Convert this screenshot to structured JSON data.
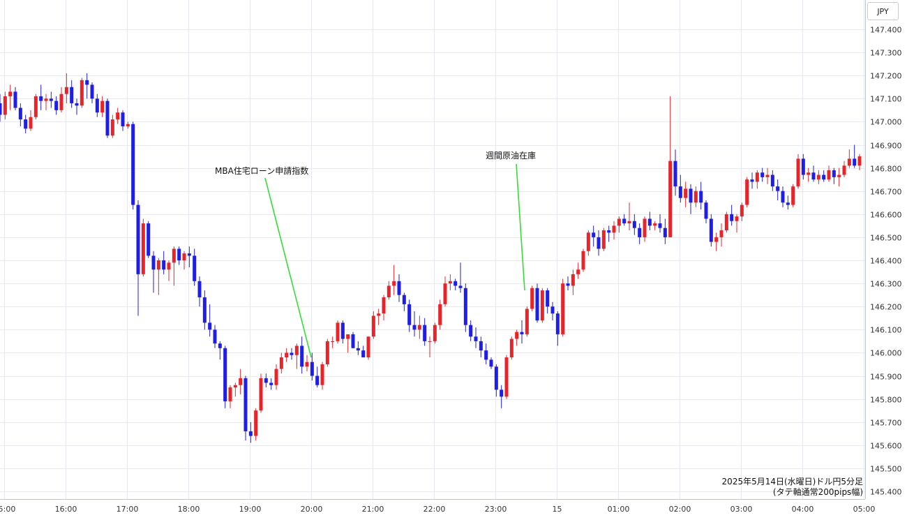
{
  "currency_label": "JPY",
  "chart_data": {
    "type": "candlestick",
    "title": "2025年5月14日(水曜日)ドル円5分足",
    "subtitle": "(タテ軸通常200pips幅)",
    "y_unit": "JPY",
    "ylim": [
      145.35,
      147.5
    ],
    "y_ticks": [
      "147.400",
      "147.300",
      "147.200",
      "147.100",
      "147.000",
      "146.900",
      "146.800",
      "146.700",
      "146.600",
      "146.500",
      "146.400",
      "146.300",
      "146.200",
      "146.100",
      "146.000",
      "145.900",
      "145.800",
      "145.700",
      "145.600",
      "145.500",
      "145.400"
    ],
    "x_ticks": [
      "15:00",
      "16:00",
      "17:00",
      "18:00",
      "19:00",
      "20:00",
      "21:00",
      "22:00",
      "23:00",
      "15",
      "01:00",
      "02:00",
      "03:00",
      "04:00",
      "05:00"
    ],
    "up_color": "#e8242b",
    "down_color": "#1e1ee6",
    "grid": true,
    "candles": [
      {
        "o": 147.08,
        "h": 147.12,
        "l": 147.0,
        "c": 147.03
      },
      {
        "o": 147.03,
        "h": 147.13,
        "l": 147.01,
        "c": 147.11
      },
      {
        "o": 147.11,
        "h": 147.16,
        "l": 147.05,
        "c": 147.13
      },
      {
        "o": 147.13,
        "h": 147.15,
        "l": 147.05,
        "c": 147.06
      },
      {
        "o": 147.06,
        "h": 147.08,
        "l": 146.98,
        "c": 147.01
      },
      {
        "o": 147.01,
        "h": 147.03,
        "l": 146.95,
        "c": 146.97
      },
      {
        "o": 146.97,
        "h": 147.05,
        "l": 146.96,
        "c": 147.02
      },
      {
        "o": 147.02,
        "h": 147.12,
        "l": 147.01,
        "c": 147.11
      },
      {
        "o": 147.11,
        "h": 147.16,
        "l": 147.05,
        "c": 147.09
      },
      {
        "o": 147.09,
        "h": 147.12,
        "l": 147.05,
        "c": 147.1
      },
      {
        "o": 147.1,
        "h": 147.13,
        "l": 147.06,
        "c": 147.09
      },
      {
        "o": 147.09,
        "h": 147.11,
        "l": 147.03,
        "c": 147.05
      },
      {
        "o": 147.05,
        "h": 147.15,
        "l": 147.04,
        "c": 147.12
      },
      {
        "o": 147.12,
        "h": 147.21,
        "l": 147.08,
        "c": 147.15
      },
      {
        "o": 147.15,
        "h": 147.18,
        "l": 147.06,
        "c": 147.08
      },
      {
        "o": 147.08,
        "h": 147.1,
        "l": 147.03,
        "c": 147.07
      },
      {
        "o": 147.07,
        "h": 147.19,
        "l": 147.06,
        "c": 147.18
      },
      {
        "o": 147.18,
        "h": 147.21,
        "l": 147.1,
        "c": 147.16
      },
      {
        "o": 147.16,
        "h": 147.17,
        "l": 147.08,
        "c": 147.1
      },
      {
        "o": 147.1,
        "h": 147.12,
        "l": 147.02,
        "c": 147.04
      },
      {
        "o": 147.04,
        "h": 147.11,
        "l": 147.02,
        "c": 147.09
      },
      {
        "o": 147.09,
        "h": 147.1,
        "l": 146.93,
        "c": 146.94
      },
      {
        "o": 146.94,
        "h": 147.03,
        "l": 146.93,
        "c": 147.01
      },
      {
        "o": 147.01,
        "h": 147.06,
        "l": 146.99,
        "c": 147.04
      },
      {
        "o": 147.04,
        "h": 147.05,
        "l": 146.96,
        "c": 146.98
      },
      {
        "o": 146.98,
        "h": 147.0,
        "l": 146.97,
        "c": 146.99
      },
      {
        "o": 146.99,
        "h": 147.0,
        "l": 146.62,
        "c": 146.64
      },
      {
        "o": 146.64,
        "h": 146.66,
        "l": 146.16,
        "c": 146.34
      },
      {
        "o": 146.34,
        "h": 146.58,
        "l": 146.33,
        "c": 146.56
      },
      {
        "o": 146.56,
        "h": 146.57,
        "l": 146.41,
        "c": 146.42
      },
      {
        "o": 146.42,
        "h": 146.44,
        "l": 146.26,
        "c": 146.36
      },
      {
        "o": 146.36,
        "h": 146.41,
        "l": 146.25,
        "c": 146.4
      },
      {
        "o": 146.4,
        "h": 146.44,
        "l": 146.34,
        "c": 146.36
      },
      {
        "o": 146.36,
        "h": 146.4,
        "l": 146.31,
        "c": 146.39
      },
      {
        "o": 146.39,
        "h": 146.46,
        "l": 146.29,
        "c": 146.45
      },
      {
        "o": 146.45,
        "h": 146.46,
        "l": 146.38,
        "c": 146.4
      },
      {
        "o": 146.4,
        "h": 146.44,
        "l": 146.36,
        "c": 146.43
      },
      {
        "o": 146.43,
        "h": 146.46,
        "l": 146.37,
        "c": 146.42
      },
      {
        "o": 146.42,
        "h": 146.45,
        "l": 146.29,
        "c": 146.31
      },
      {
        "o": 146.31,
        "h": 146.33,
        "l": 146.2,
        "c": 146.24
      },
      {
        "o": 146.24,
        "h": 146.27,
        "l": 146.1,
        "c": 146.13
      },
      {
        "o": 146.13,
        "h": 146.21,
        "l": 146.07,
        "c": 146.1
      },
      {
        "o": 146.1,
        "h": 146.12,
        "l": 146.02,
        "c": 146.04
      },
      {
        "o": 146.04,
        "h": 146.05,
        "l": 145.97,
        "c": 146.02
      },
      {
        "o": 146.02,
        "h": 146.03,
        "l": 145.76,
        "c": 145.79
      },
      {
        "o": 145.79,
        "h": 145.86,
        "l": 145.76,
        "c": 145.85
      },
      {
        "o": 145.85,
        "h": 145.87,
        "l": 145.81,
        "c": 145.86
      },
      {
        "o": 145.86,
        "h": 145.93,
        "l": 145.82,
        "c": 145.89
      },
      {
        "o": 145.89,
        "h": 145.9,
        "l": 145.62,
        "c": 145.66
      },
      {
        "o": 145.66,
        "h": 145.7,
        "l": 145.61,
        "c": 145.64
      },
      {
        "o": 145.64,
        "h": 145.76,
        "l": 145.62,
        "c": 145.75
      },
      {
        "o": 145.75,
        "h": 145.91,
        "l": 145.74,
        "c": 145.89
      },
      {
        "o": 145.89,
        "h": 145.91,
        "l": 145.85,
        "c": 145.87
      },
      {
        "o": 145.87,
        "h": 145.89,
        "l": 145.84,
        "c": 145.86
      },
      {
        "o": 145.86,
        "h": 145.95,
        "l": 145.84,
        "c": 145.93
      },
      {
        "o": 145.93,
        "h": 146.0,
        "l": 145.91,
        "c": 145.98
      },
      {
        "o": 145.98,
        "h": 146.02,
        "l": 145.96,
        "c": 146.0
      },
      {
        "o": 146.0,
        "h": 146.02,
        "l": 145.97,
        "c": 145.99
      },
      {
        "o": 145.99,
        "h": 146.04,
        "l": 145.93,
        "c": 146.03
      },
      {
        "o": 146.03,
        "h": 146.07,
        "l": 145.91,
        "c": 145.94
      },
      {
        "o": 145.94,
        "h": 145.99,
        "l": 145.92,
        "c": 145.96
      },
      {
        "o": 145.96,
        "h": 146.0,
        "l": 145.88,
        "c": 145.9
      },
      {
        "o": 145.9,
        "h": 145.94,
        "l": 145.85,
        "c": 145.86
      },
      {
        "o": 145.86,
        "h": 145.96,
        "l": 145.84,
        "c": 145.95
      },
      {
        "o": 145.95,
        "h": 146.06,
        "l": 145.94,
        "c": 146.05
      },
      {
        "o": 146.05,
        "h": 146.07,
        "l": 146.02,
        "c": 146.05
      },
      {
        "o": 146.05,
        "h": 146.14,
        "l": 146.04,
        "c": 146.13
      },
      {
        "o": 146.13,
        "h": 146.14,
        "l": 146.04,
        "c": 146.06
      },
      {
        "o": 146.06,
        "h": 146.08,
        "l": 146.0,
        "c": 146.08
      },
      {
        "o": 146.08,
        "h": 146.09,
        "l": 146.02,
        "c": 146.02
      },
      {
        "o": 146.02,
        "h": 146.05,
        "l": 145.99,
        "c": 146.01
      },
      {
        "o": 146.01,
        "h": 146.03,
        "l": 145.98,
        "c": 145.98
      },
      {
        "o": 145.98,
        "h": 146.07,
        "l": 145.97,
        "c": 146.07
      },
      {
        "o": 146.07,
        "h": 146.18,
        "l": 146.06,
        "c": 146.16
      },
      {
        "o": 146.16,
        "h": 146.19,
        "l": 146.12,
        "c": 146.17
      },
      {
        "o": 146.17,
        "h": 146.25,
        "l": 146.14,
        "c": 146.24
      },
      {
        "o": 146.24,
        "h": 146.31,
        "l": 146.23,
        "c": 146.29
      },
      {
        "o": 146.29,
        "h": 146.38,
        "l": 146.25,
        "c": 146.31
      },
      {
        "o": 146.31,
        "h": 146.34,
        "l": 146.22,
        "c": 146.25
      },
      {
        "o": 146.25,
        "h": 146.26,
        "l": 146.18,
        "c": 146.21
      },
      {
        "o": 146.21,
        "h": 146.23,
        "l": 146.09,
        "c": 146.12
      },
      {
        "o": 146.12,
        "h": 146.18,
        "l": 146.07,
        "c": 146.1
      },
      {
        "o": 146.1,
        "h": 146.16,
        "l": 146.06,
        "c": 146.12
      },
      {
        "o": 146.12,
        "h": 146.15,
        "l": 146.03,
        "c": 146.05
      },
      {
        "o": 146.05,
        "h": 146.07,
        "l": 145.98,
        "c": 146.05
      },
      {
        "o": 146.05,
        "h": 146.13,
        "l": 146.04,
        "c": 146.12
      },
      {
        "o": 146.12,
        "h": 146.23,
        "l": 146.1,
        "c": 146.21
      },
      {
        "o": 146.21,
        "h": 146.33,
        "l": 146.2,
        "c": 146.3
      },
      {
        "o": 146.3,
        "h": 146.34,
        "l": 146.27,
        "c": 146.31
      },
      {
        "o": 146.31,
        "h": 146.32,
        "l": 146.27,
        "c": 146.29
      },
      {
        "o": 146.29,
        "h": 146.39,
        "l": 146.26,
        "c": 146.28
      },
      {
        "o": 146.28,
        "h": 146.3,
        "l": 146.09,
        "c": 146.12
      },
      {
        "o": 146.12,
        "h": 146.14,
        "l": 146.05,
        "c": 146.07
      },
      {
        "o": 146.07,
        "h": 146.11,
        "l": 146.02,
        "c": 146.05
      },
      {
        "o": 146.05,
        "h": 146.07,
        "l": 145.98,
        "c": 146.01
      },
      {
        "o": 146.01,
        "h": 146.04,
        "l": 145.95,
        "c": 145.97
      },
      {
        "o": 145.97,
        "h": 145.98,
        "l": 145.93,
        "c": 145.94
      },
      {
        "o": 145.94,
        "h": 145.95,
        "l": 145.81,
        "c": 145.84
      },
      {
        "o": 145.84,
        "h": 145.86,
        "l": 145.76,
        "c": 145.81
      },
      {
        "o": 145.81,
        "h": 145.99,
        "l": 145.8,
        "c": 145.98
      },
      {
        "o": 145.98,
        "h": 146.07,
        "l": 145.97,
        "c": 146.06
      },
      {
        "o": 146.06,
        "h": 146.1,
        "l": 146.03,
        "c": 146.09
      },
      {
        "o": 146.09,
        "h": 146.14,
        "l": 146.04,
        "c": 146.08
      },
      {
        "o": 146.08,
        "h": 146.2,
        "l": 146.07,
        "c": 146.19
      },
      {
        "o": 146.19,
        "h": 146.29,
        "l": 146.18,
        "c": 146.28
      },
      {
        "o": 146.28,
        "h": 146.3,
        "l": 146.13,
        "c": 146.14
      },
      {
        "o": 146.14,
        "h": 146.28,
        "l": 146.13,
        "c": 146.27
      },
      {
        "o": 146.27,
        "h": 146.28,
        "l": 146.17,
        "c": 146.2
      },
      {
        "o": 146.2,
        "h": 146.22,
        "l": 146.14,
        "c": 146.17
      },
      {
        "o": 146.17,
        "h": 146.18,
        "l": 146.03,
        "c": 146.08
      },
      {
        "o": 146.08,
        "h": 146.32,
        "l": 146.07,
        "c": 146.3
      },
      {
        "o": 146.3,
        "h": 146.33,
        "l": 146.27,
        "c": 146.29
      },
      {
        "o": 146.29,
        "h": 146.36,
        "l": 146.25,
        "c": 146.34
      },
      {
        "o": 146.34,
        "h": 146.39,
        "l": 146.32,
        "c": 146.36
      },
      {
        "o": 146.36,
        "h": 146.45,
        "l": 146.35,
        "c": 146.44
      },
      {
        "o": 146.44,
        "h": 146.53,
        "l": 146.42,
        "c": 146.52
      },
      {
        "o": 146.52,
        "h": 146.55,
        "l": 146.46,
        "c": 146.5
      },
      {
        "o": 146.5,
        "h": 146.53,
        "l": 146.42,
        "c": 146.45
      },
      {
        "o": 146.45,
        "h": 146.54,
        "l": 146.44,
        "c": 146.53
      },
      {
        "o": 146.53,
        "h": 146.55,
        "l": 146.48,
        "c": 146.52
      },
      {
        "o": 146.52,
        "h": 146.57,
        "l": 146.49,
        "c": 146.55
      },
      {
        "o": 146.55,
        "h": 146.59,
        "l": 146.52,
        "c": 146.58
      },
      {
        "o": 146.58,
        "h": 146.6,
        "l": 146.55,
        "c": 146.56
      },
      {
        "o": 146.56,
        "h": 146.65,
        "l": 146.53,
        "c": 146.57
      },
      {
        "o": 146.57,
        "h": 146.6,
        "l": 146.51,
        "c": 146.54
      },
      {
        "o": 146.54,
        "h": 146.56,
        "l": 146.47,
        "c": 146.5
      },
      {
        "o": 146.5,
        "h": 146.59,
        "l": 146.48,
        "c": 146.58
      },
      {
        "o": 146.58,
        "h": 146.61,
        "l": 146.53,
        "c": 146.55
      },
      {
        "o": 146.55,
        "h": 146.57,
        "l": 146.53,
        "c": 146.56
      },
      {
        "o": 146.56,
        "h": 146.6,
        "l": 146.52,
        "c": 146.54
      },
      {
        "o": 146.54,
        "h": 146.58,
        "l": 146.47,
        "c": 146.5
      },
      {
        "o": 146.5,
        "h": 147.11,
        "l": 146.5,
        "c": 146.83
      },
      {
        "o": 146.83,
        "h": 146.88,
        "l": 146.68,
        "c": 146.72
      },
      {
        "o": 146.72,
        "h": 146.77,
        "l": 146.65,
        "c": 146.67
      },
      {
        "o": 146.67,
        "h": 146.74,
        "l": 146.63,
        "c": 146.71
      },
      {
        "o": 146.71,
        "h": 146.73,
        "l": 146.6,
        "c": 146.65
      },
      {
        "o": 146.65,
        "h": 146.72,
        "l": 146.63,
        "c": 146.7
      },
      {
        "o": 146.7,
        "h": 146.74,
        "l": 146.62,
        "c": 146.65
      },
      {
        "o": 146.65,
        "h": 146.66,
        "l": 146.56,
        "c": 146.58
      },
      {
        "o": 146.58,
        "h": 146.6,
        "l": 146.46,
        "c": 146.48
      },
      {
        "o": 146.48,
        "h": 146.52,
        "l": 146.44,
        "c": 146.5
      },
      {
        "o": 146.5,
        "h": 146.56,
        "l": 146.46,
        "c": 146.53
      },
      {
        "o": 146.53,
        "h": 146.61,
        "l": 146.52,
        "c": 146.6
      },
      {
        "o": 146.6,
        "h": 146.64,
        "l": 146.55,
        "c": 146.57
      },
      {
        "o": 146.57,
        "h": 146.6,
        "l": 146.52,
        "c": 146.59
      },
      {
        "o": 146.59,
        "h": 146.65,
        "l": 146.57,
        "c": 146.64
      },
      {
        "o": 146.64,
        "h": 146.76,
        "l": 146.63,
        "c": 146.75
      },
      {
        "o": 146.75,
        "h": 146.78,
        "l": 146.71,
        "c": 146.74
      },
      {
        "o": 146.74,
        "h": 146.79,
        "l": 146.71,
        "c": 146.78
      },
      {
        "o": 146.78,
        "h": 146.8,
        "l": 146.74,
        "c": 146.76
      },
      {
        "o": 146.76,
        "h": 146.8,
        "l": 146.73,
        "c": 146.77
      },
      {
        "o": 146.77,
        "h": 146.79,
        "l": 146.7,
        "c": 146.72
      },
      {
        "o": 146.72,
        "h": 146.75,
        "l": 146.66,
        "c": 146.7
      },
      {
        "o": 146.7,
        "h": 146.72,
        "l": 146.63,
        "c": 146.65
      },
      {
        "o": 146.65,
        "h": 146.68,
        "l": 146.62,
        "c": 146.64
      },
      {
        "o": 146.64,
        "h": 146.73,
        "l": 146.63,
        "c": 146.72
      },
      {
        "o": 146.72,
        "h": 146.86,
        "l": 146.71,
        "c": 146.84
      },
      {
        "o": 146.84,
        "h": 146.86,
        "l": 146.75,
        "c": 146.77
      },
      {
        "o": 146.77,
        "h": 146.8,
        "l": 146.74,
        "c": 146.78
      },
      {
        "o": 146.78,
        "h": 146.81,
        "l": 146.74,
        "c": 146.75
      },
      {
        "o": 146.75,
        "h": 146.79,
        "l": 146.73,
        "c": 146.77
      },
      {
        "o": 146.77,
        "h": 146.79,
        "l": 146.74,
        "c": 146.75
      },
      {
        "o": 146.75,
        "h": 146.81,
        "l": 146.74,
        "c": 146.79
      },
      {
        "o": 146.79,
        "h": 146.8,
        "l": 146.73,
        "c": 146.76
      },
      {
        "o": 146.76,
        "h": 146.8,
        "l": 146.72,
        "c": 146.77
      },
      {
        "o": 146.77,
        "h": 146.83,
        "l": 146.76,
        "c": 146.81
      },
      {
        "o": 146.81,
        "h": 146.88,
        "l": 146.8,
        "c": 146.84
      },
      {
        "o": 146.84,
        "h": 146.9,
        "l": 146.8,
        "c": 146.81
      },
      {
        "o": 146.81,
        "h": 146.86,
        "l": 146.79,
        "c": 146.85
      }
    ],
    "annotations": [
      {
        "label": "MBA住宅ローン申請指数",
        "time": "20:00"
      },
      {
        "label": "週間原油在庫",
        "time": "23:30"
      }
    ]
  }
}
